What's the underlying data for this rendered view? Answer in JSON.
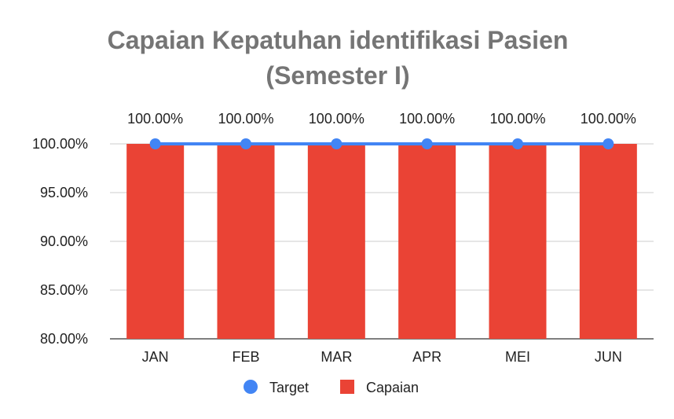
{
  "chart_data": {
    "type": "bar",
    "title_line1": "Capaian Kepatuhan identifikasi Pasien",
    "title_line2": "(Semester I)",
    "categories": [
      "JAN",
      "FEB",
      "MAR",
      "APR",
      "MEI",
      "JUN"
    ],
    "series": [
      {
        "name": "Capaian",
        "type": "bar",
        "color": "#ea4335",
        "values": [
          100,
          100,
          100,
          100,
          100,
          100
        ],
        "data_labels": [
          "100.00%",
          "100.00%",
          "100.00%",
          "100.00%",
          "100.00%",
          "100.00%"
        ]
      },
      {
        "name": "Target",
        "type": "line",
        "color": "#4285f4",
        "values": [
          100,
          100,
          100,
          100,
          100,
          100
        ]
      }
    ],
    "y_ticks": [
      80,
      85,
      90,
      95,
      100
    ],
    "y_tick_labels": [
      "80.00%",
      "85.00%",
      "90.00%",
      "95.00%",
      "100.00%"
    ],
    "ylim": [
      80,
      100
    ],
    "grid": true,
    "legend_position": "bottom",
    "legend": [
      {
        "name": "Target",
        "color": "#4285f4",
        "marker": "circle"
      },
      {
        "name": "Capaian",
        "color": "#ea4335",
        "marker": "square"
      }
    ]
  }
}
